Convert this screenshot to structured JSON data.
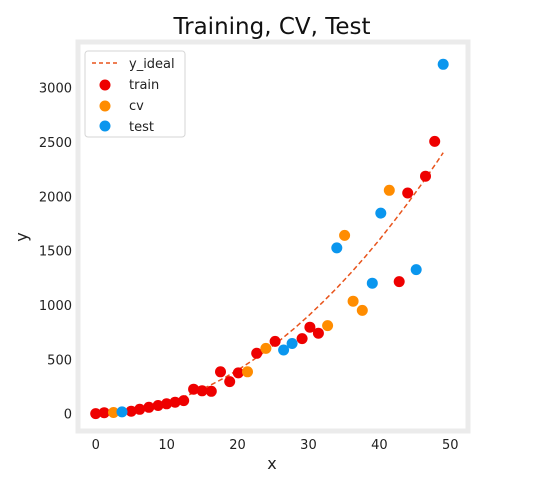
{
  "chart_data": {
    "type": "scatter",
    "title": "Training, CV, Test",
    "xlabel": "x",
    "ylabel": "y",
    "xlim": [
      -2.5,
      52.5
    ],
    "ylim": [
      -160,
      3420
    ],
    "xticks": [
      "0",
      "10",
      "20",
      "30",
      "40",
      "50"
    ],
    "yticks": [
      "0",
      "500",
      "1000",
      "1500",
      "2000",
      "2500",
      "3000"
    ],
    "grid": false,
    "legend_position": "upper-left",
    "series": [
      {
        "name": "y_ideal",
        "kind": "line",
        "style": "dashed",
        "color": "#e8541c",
        "x": [
          0,
          2,
          4,
          6,
          8,
          10,
          12,
          14,
          16,
          18,
          20,
          22,
          24,
          26,
          28,
          30,
          32,
          34,
          36,
          38,
          40,
          42,
          44,
          46,
          48,
          49
        ],
        "y": [
          0,
          4,
          16,
          36,
          64,
          100,
          144,
          196,
          256,
          324,
          400,
          484,
          576,
          676,
          784,
          900,
          1024,
          1156,
          1296,
          1444,
          1600,
          1764,
          1936,
          2116,
          2304,
          2401
        ]
      },
      {
        "name": "train",
        "kind": "scatter",
        "color": "#ee0000",
        "x": [
          0,
          1.2,
          5,
          6.2,
          7.5,
          8.8,
          10,
          11.2,
          12.4,
          13.8,
          15,
          16.3,
          17.6,
          18.9,
          20.1,
          22.7,
          25.3,
          29.1,
          30.2,
          31.4,
          42.8,
          44,
          46.5,
          47.8
        ],
        "y": [
          0,
          8,
          22,
          40,
          58,
          75,
          90,
          105,
          120,
          225,
          210,
          205,
          385,
          295,
          375,
          555,
          665,
          690,
          795,
          740,
          1215,
          2030,
          2185,
          2505
        ]
      },
      {
        "name": "cv",
        "kind": "scatter",
        "color": "#ff8c00",
        "x": [
          2.5,
          21.4,
          24,
          32.7,
          35.1,
          36.3,
          37.6,
          41.4
        ],
        "y": [
          10,
          385,
          600,
          810,
          1640,
          1035,
          950,
          2055
        ]
      },
      {
        "name": "test",
        "kind": "scatter",
        "color": "#0a96ee",
        "x": [
          3.7,
          26.5,
          27.7,
          34,
          39,
          40.2,
          45.2,
          49
        ],
        "y": [
          16,
          585,
          645,
          1525,
          1200,
          1845,
          1325,
          3215
        ]
      }
    ]
  }
}
